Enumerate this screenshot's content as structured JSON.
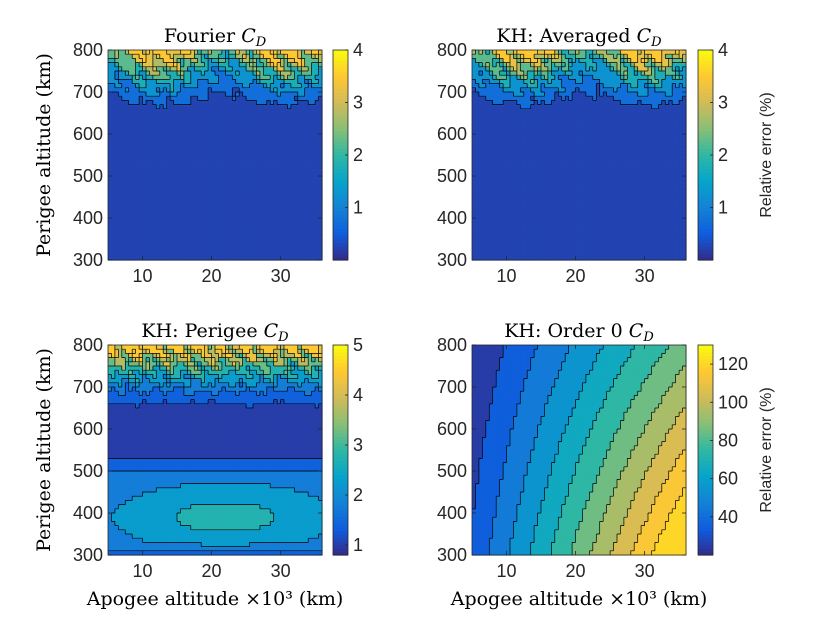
{
  "figure": {
    "shared_ylabel": "Perigee altitude (km)",
    "shared_xlabel": "Apogee altitude ×10³ (km)",
    "colorbar_label": "Relative error (%)"
  },
  "colors": {
    "parula": [
      "#352a87",
      "#0f5cdd",
      "#1481d6",
      "#06a4ca",
      "#2eb7a4",
      "#87bf77",
      "#d1bb59",
      "#fec832",
      "#f9fb0e"
    ],
    "contour_line": "#000000",
    "axis": "#262626"
  },
  "chart_data": [
    {
      "type": "contour",
      "panel": "top-left",
      "title_prefix": "Fourier ",
      "title_var": "C",
      "title_sub": "D",
      "xlabel": "",
      "ylabel": "Perigee altitude (km)",
      "xlim": [
        5,
        36
      ],
      "ylim": [
        300,
        800
      ],
      "xticks": [
        10,
        20,
        30
      ],
      "yticks": [
        300,
        400,
        500,
        600,
        700,
        800
      ],
      "colorbar": {
        "range": [
          0,
          4
        ],
        "ticks": [
          1,
          2,
          3,
          4
        ],
        "label": ""
      },
      "field": "noisy_top",
      "amplitude": 4.0,
      "levels": [
        0.5,
        1.0,
        1.5,
        2.0,
        2.5,
        3.0,
        3.5
      ]
    },
    {
      "type": "contour",
      "panel": "top-right",
      "title_prefix": "KH: Averaged ",
      "title_var": "C",
      "title_sub": "D",
      "xlabel": "",
      "ylabel": "",
      "xlim": [
        5,
        36
      ],
      "ylim": [
        300,
        800
      ],
      "xticks": [
        10,
        20,
        30
      ],
      "yticks": [
        300,
        400,
        500,
        600,
        700,
        800
      ],
      "colorbar": {
        "range": [
          0,
          4
        ],
        "ticks": [
          1,
          2,
          3,
          4
        ],
        "label": "Relative error (%)"
      },
      "field": "noisy_top",
      "amplitude": 4.0,
      "levels": [
        0.5,
        1.0,
        1.5,
        2.0,
        2.5,
        3.0,
        3.5
      ]
    },
    {
      "type": "contour",
      "panel": "bottom-left",
      "title_prefix": "KH: Perigee ",
      "title_var": "C",
      "title_sub": "D",
      "xlabel": "Apogee altitude ×10³ (km)",
      "ylabel": "Perigee altitude (km)",
      "xlim": [
        5,
        36
      ],
      "ylim": [
        300,
        800
      ],
      "xticks": [
        10,
        20,
        30
      ],
      "yticks": [
        300,
        400,
        500,
        600,
        700,
        800
      ],
      "colorbar": {
        "range": [
          0.8,
          5
        ],
        "ticks": [
          1,
          2,
          3,
          4,
          5
        ],
        "label": ""
      },
      "field": "perigee",
      "amplitude": 5.0,
      "levels": [
        1.2,
        1.6,
        2.0,
        2.5,
        3.0,
        3.5,
        4.0,
        4.5
      ]
    },
    {
      "type": "contour",
      "panel": "bottom-right",
      "title_prefix": "KH: Order 0 ",
      "title_var": "C",
      "title_sub": "D",
      "xlabel": "Apogee altitude ×10³ (km)",
      "ylabel": "",
      "xlim": [
        5,
        36
      ],
      "ylim": [
        300,
        800
      ],
      "xticks": [
        10,
        20,
        30
      ],
      "yticks": [
        300,
        400,
        500,
        600,
        700,
        800
      ],
      "colorbar": {
        "range": [
          20,
          130
        ],
        "ticks": [
          40,
          60,
          80,
          100,
          120
        ],
        "label": "Relative error (%)"
      },
      "field": "order0",
      "amplitude": 130,
      "levels": [
        30,
        40,
        50,
        60,
        70,
        80,
        90,
        100,
        110,
        120
      ]
    }
  ]
}
